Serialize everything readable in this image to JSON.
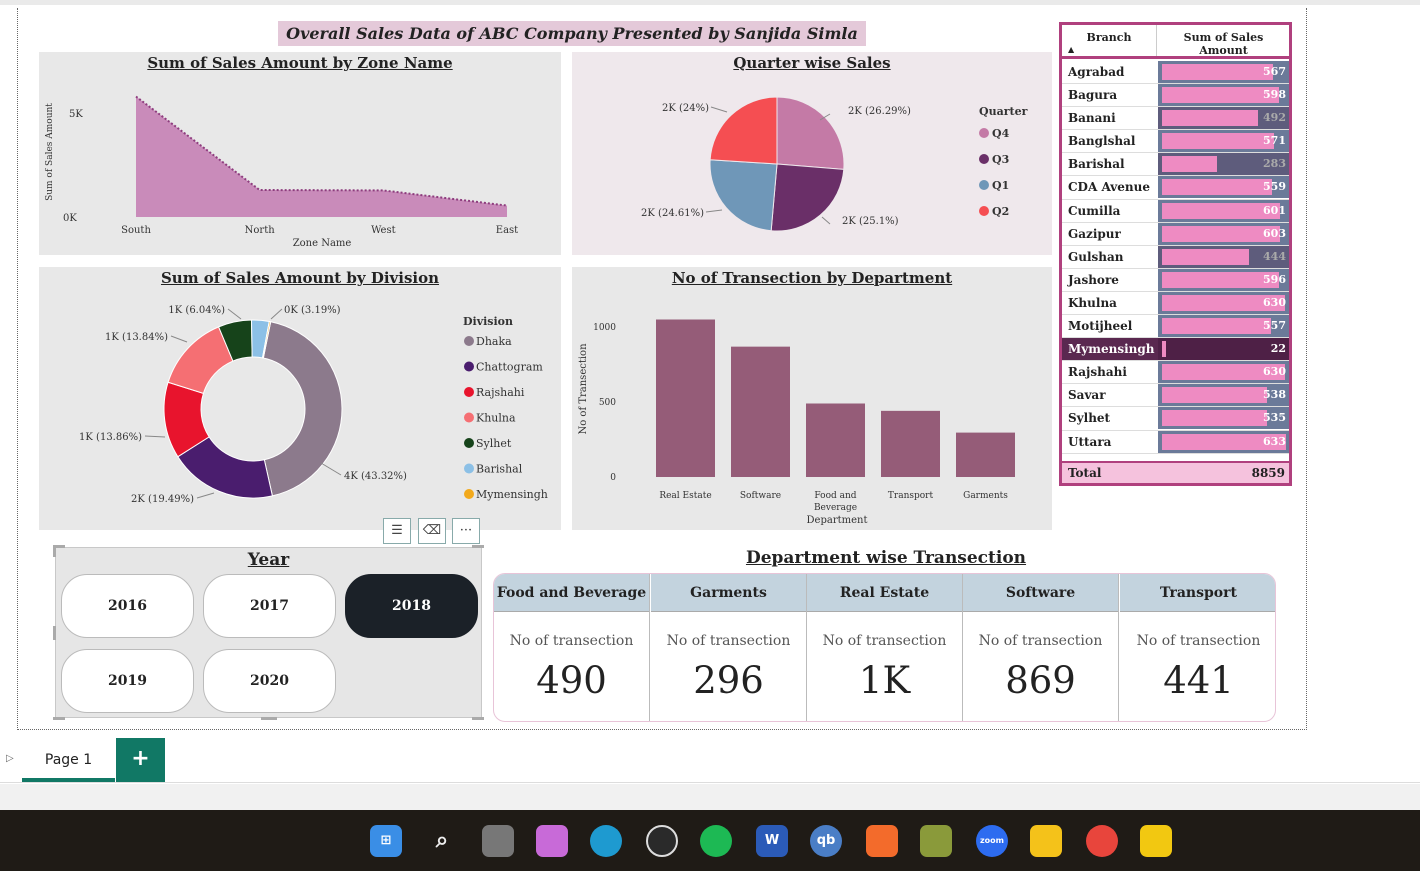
{
  "title": "Overall Sales Data of ABC Company Presented by Sanjida Simla",
  "zone_chart": {
    "title": "Sum of Sales Amount by Zone Name",
    "chart_data": {
      "type": "area",
      "categories": [
        "South",
        "North",
        "West",
        "East"
      ],
      "values": [
        5800,
        1300,
        1280,
        550
      ],
      "xlabel": "Zone Name",
      "ylabel": "Sum of Sales Amount",
      "yticks": [
        "5K",
        "0K"
      ],
      "ylim": [
        0,
        6500
      ]
    }
  },
  "quarter_chart": {
    "title": "Quarter wise Sales",
    "legend_title": "Quarter",
    "chart_data": {
      "type": "pie",
      "labels": [
        "Q4",
        "Q3",
        "Q1",
        "Q2"
      ],
      "values": [
        26.29,
        25.1,
        24.61,
        24.0
      ],
      "data_labels": [
        "2K (26.29%)",
        "2K (25.1%)",
        "2K (24.61%)",
        "2K (24%)"
      ],
      "colors": [
        "#c47aa6",
        "#6a2f68",
        "#6f97b8",
        "#f54e52"
      ]
    }
  },
  "division_chart": {
    "title": "Sum of Sales Amount by Division",
    "legend_title": "Division",
    "chart_data": {
      "type": "pie",
      "labels": [
        "Dhaka",
        "Chattogram",
        "Rajshahi",
        "Khulna",
        "Sylhet",
        "Barishal",
        "Mymensingh"
      ],
      "values": [
        43.32,
        19.49,
        13.86,
        13.84,
        6.04,
        3.19,
        0.26
      ],
      "data_labels": [
        "4K (43.32%)",
        "2K (19.49%)",
        "1K (13.86%)",
        "1K (13.84%)",
        "1K (6.04%)",
        "0K (3.19%)",
        ""
      ],
      "colors": [
        "#8c7a8c",
        "#4a1d6e",
        "#e8142d",
        "#f56f73",
        "#16431a",
        "#8cc0e6",
        "#f2a91c"
      ]
    }
  },
  "dept_chart": {
    "title": "No of Transection by Department",
    "chart_data": {
      "type": "bar",
      "categories": [
        "Real Estate",
        "Software",
        "Food and Beverage",
        "Transport",
        "Garments"
      ],
      "values": [
        1050,
        869,
        490,
        441,
        296
      ],
      "xlabel": "Department",
      "ylabel": "No of Transection",
      "yticks": [
        "1000",
        "500",
        "0"
      ],
      "ylim": [
        0,
        1200
      ],
      "color": "#955c78"
    }
  },
  "branch_table": {
    "col1": "Branch",
    "col2": "Sum of Sales Amount",
    "max": 633,
    "rows": [
      {
        "name": "Agrabad",
        "value": "567",
        "num": 567
      },
      {
        "name": "Bagura",
        "value": "598",
        "num": 598
      },
      {
        "name": "Banani",
        "value": "492",
        "num": 492
      },
      {
        "name": "Banglshal",
        "value": "571",
        "num": 571
      },
      {
        "name": "Barishal",
        "value": "283",
        "num": 283
      },
      {
        "name": "CDA Avenue",
        "value": "559",
        "num": 559
      },
      {
        "name": "Cumilla",
        "value": "601",
        "num": 601
      },
      {
        "name": "Gazipur",
        "value": "603",
        "num": 603
      },
      {
        "name": "Gulshan",
        "value": "444",
        "num": 444
      },
      {
        "name": "Jashore",
        "value": "596",
        "num": 596
      },
      {
        "name": "Khulna",
        "value": "630",
        "num": 630
      },
      {
        "name": "Motijheel",
        "value": "557",
        "num": 557
      },
      {
        "name": "Mymensingh",
        "value": "22",
        "num": 22
      },
      {
        "name": "Rajshahi",
        "value": "630",
        "num": 630
      },
      {
        "name": "Savar",
        "value": "538",
        "num": 538
      },
      {
        "name": "Sylhet",
        "value": "535",
        "num": 535
      },
      {
        "name": "Uttara",
        "value": "633",
        "num": 633
      }
    ],
    "total_label": "Total",
    "total_value": "8859"
  },
  "year_slicer": {
    "title": "Year",
    "years": [
      "2016",
      "2017",
      "2018",
      "2019",
      "2020"
    ],
    "selected": "2018"
  },
  "dept_cards": {
    "title": "Department wise Transection",
    "label": "No of transection",
    "cards": [
      {
        "name": "Food and Beverage",
        "value": "490"
      },
      {
        "name": "Garments",
        "value": "296"
      },
      {
        "name": "Real Estate",
        "value": "1K"
      },
      {
        "name": "Software",
        "value": "869"
      },
      {
        "name": "Transport",
        "value": "441"
      }
    ]
  },
  "page_tabs": {
    "current": "Page 1",
    "add": "+"
  },
  "taskbar": [
    "windows-icon",
    "search-icon",
    "task-view-icon",
    "copilot-icon",
    "edge-icon",
    "obs-icon",
    "spotify-icon",
    "word-icon",
    "qbittorrent-icon",
    "xampp-icon",
    "sumatra-icon",
    "zoom-icon",
    "file-explorer-icon",
    "chrome-icon",
    "power-bi-icon"
  ]
}
